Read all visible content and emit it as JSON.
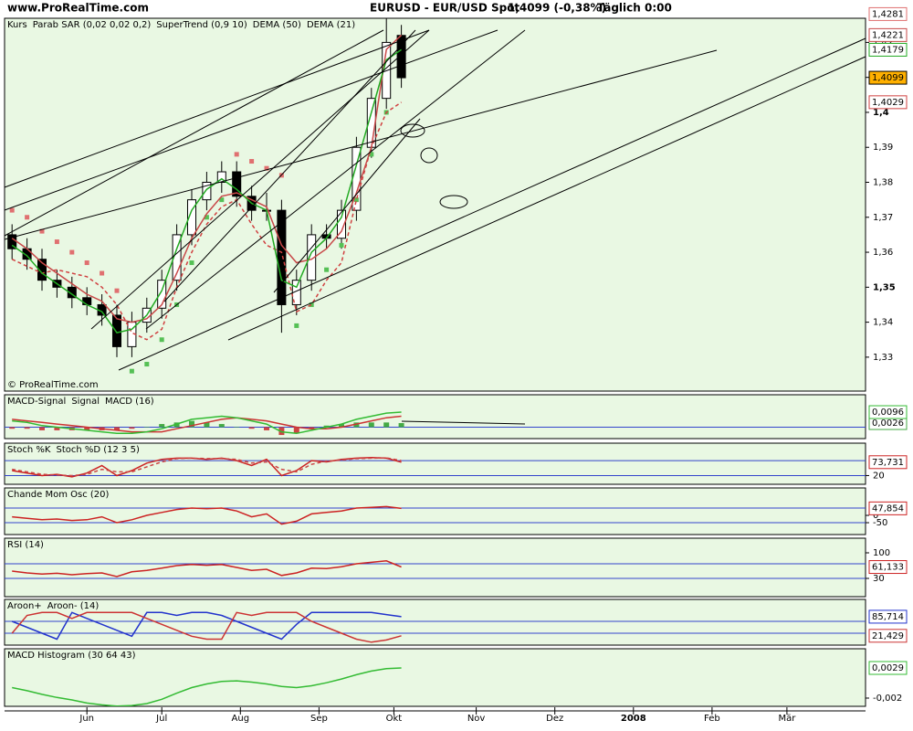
{
  "header": {
    "site": "www.ProRealTime.com",
    "instrument": "EURUSD - EUR/USD Spot",
    "quote": "1,4099 (-0,38%)",
    "period": "Täglich 0:00",
    "copyright": "© ProRealTime.com"
  },
  "chart_data": [
    {
      "type": "candlestick",
      "x": [
        2,
        6,
        10,
        14,
        18,
        22,
        26,
        30,
        34,
        38,
        42,
        46,
        50,
        54,
        58,
        62,
        66,
        70,
        74,
        78,
        82,
        86,
        90,
        94,
        98,
        102,
        106
      ],
      "xlim": [
        0,
        230
      ],
      "xticks": [
        {
          "value": 22,
          "label": "Jun"
        },
        {
          "value": 42,
          "label": "Jul"
        },
        {
          "value": 63,
          "label": "Aug"
        },
        {
          "value": 84,
          "label": "Sep"
        },
        {
          "value": 104,
          "label": "Okt"
        },
        {
          "value": 126,
          "label": "Nov"
        },
        {
          "value": 147,
          "label": "Dez"
        },
        {
          "value": 168,
          "label": "2008",
          "bold": true
        },
        {
          "value": 189,
          "label": "Feb"
        },
        {
          "value": 209,
          "label": "Mär"
        }
      ],
      "ylim": [
        1.3203,
        1.4269
      ],
      "yticks": [
        {
          "value": 1.33,
          "label": "1,33"
        },
        {
          "value": 1.34,
          "label": "1,34"
        },
        {
          "value": 1.35,
          "label": "1,35",
          "bold": true
        },
        {
          "value": 1.36,
          "label": "1,36"
        },
        {
          "value": 1.37,
          "label": "1,37"
        },
        {
          "value": 1.38,
          "label": "1,38"
        },
        {
          "value": 1.39,
          "label": "1,39"
        },
        {
          "value": 1.4,
          "label": "1,4",
          "bold": true
        },
        {
          "value": 1.41,
          "label": "1,41"
        },
        {
          "value": 1.42,
          "label": "1,42"
        }
      ],
      "series": [
        {
          "name": "Kurs",
          "type": "candlestick",
          "color": "#000000",
          "tag_fill": "#ffb000",
          "last_label": "1,4099",
          "open": [
            1.365,
            1.361,
            1.358,
            1.352,
            1.35,
            1.347,
            1.345,
            1.342,
            1.333,
            1.34,
            1.344,
            1.352,
            1.365,
            1.375,
            1.38,
            1.383,
            1.376,
            1.372,
            1.372,
            1.345,
            1.352,
            1.365,
            1.364,
            1.372,
            1.39,
            1.404,
            1.422
          ],
          "high": [
            1.368,
            1.364,
            1.361,
            1.355,
            1.353,
            1.35,
            1.348,
            1.345,
            1.343,
            1.347,
            1.355,
            1.368,
            1.378,
            1.383,
            1.386,
            1.386,
            1.379,
            1.377,
            1.375,
            1.355,
            1.368,
            1.368,
            1.375,
            1.393,
            1.407,
            1.428,
            1.425
          ],
          "low": [
            1.358,
            1.355,
            1.349,
            1.347,
            1.344,
            1.342,
            1.339,
            1.33,
            1.33,
            1.337,
            1.341,
            1.349,
            1.362,
            1.372,
            1.377,
            1.373,
            1.369,
            1.369,
            1.337,
            1.342,
            1.349,
            1.361,
            1.361,
            1.369,
            1.387,
            1.401,
            1.407
          ],
          "close": [
            1.361,
            1.358,
            1.352,
            1.35,
            1.347,
            1.345,
            1.342,
            1.333,
            1.34,
            1.344,
            1.352,
            1.365,
            1.375,
            1.38,
            1.383,
            1.376,
            1.372,
            1.372,
            1.345,
            1.352,
            1.365,
            1.364,
            1.372,
            1.39,
            1.404,
            1.42,
            1.4099
          ]
        },
        {
          "name": "Parab SAR (0,02 0,02 0,2)",
          "type": "scatter",
          "color": "#e07070",
          "color_below": "#55c055",
          "last_label": "1,4281",
          "values": [
            1.372,
            1.37,
            1.366,
            1.363,
            1.36,
            1.357,
            1.354,
            1.349,
            1.326,
            1.328,
            1.335,
            1.345,
            1.357,
            1.37,
            1.375,
            1.388,
            1.386,
            1.384,
            1.382,
            1.339,
            1.345,
            1.355,
            1.362,
            1.375,
            1.388,
            1.4,
            1.4281
          ]
        },
        {
          "name": "SuperTrend (0,9 10)",
          "type": "line",
          "dash": true,
          "color": "#d04040",
          "last_label": "1,4029",
          "values": [
            1.358,
            1.356,
            1.354,
            1.355,
            1.354,
            1.353,
            1.35,
            1.345,
            1.337,
            1.335,
            1.338,
            1.35,
            1.36,
            1.368,
            1.373,
            1.375,
            1.368,
            1.362,
            1.36,
            1.343,
            1.345,
            1.352,
            1.357,
            1.375,
            1.39,
            1.4,
            1.4029
          ]
        },
        {
          "name": "DEMA (50)",
          "type": "line",
          "color": "#c84848",
          "last_label": "1,4221",
          "values": [
            1.364,
            1.361,
            1.357,
            1.354,
            1.351,
            1.348,
            1.346,
            1.341,
            1.34,
            1.341,
            1.345,
            1.354,
            1.364,
            1.371,
            1.376,
            1.377,
            1.375,
            1.373,
            1.362,
            1.357,
            1.358,
            1.361,
            1.366,
            1.377,
            1.39,
            1.418,
            1.4221
          ]
        },
        {
          "name": "DEMA (21)",
          "type": "line",
          "color": "#22aa22",
          "last_label": "1,4179",
          "values": [
            1.362,
            1.359,
            1.354,
            1.351,
            1.348,
            1.345,
            1.343,
            1.337,
            1.338,
            1.342,
            1.349,
            1.361,
            1.372,
            1.378,
            1.381,
            1.378,
            1.374,
            1.372,
            1.352,
            1.35,
            1.36,
            1.364,
            1.37,
            1.385,
            1.4,
            1.415,
            1.4179
          ]
        }
      ]
    },
    {
      "type": "line",
      "ylim": [
        -0.0073,
        0.0207
      ],
      "levels": [
        0
      ],
      "series": [
        {
          "name": "MACD-Signal",
          "type": "bar",
          "color": "#44aa44",
          "color_negative": "#cc4444",
          "last_label": "0,0026",
          "values": [
            -0.001,
            -0.001,
            -0.002,
            -0.002,
            -0.002,
            -0.002,
            -0.002,
            -0.002,
            -0.001,
            0.0,
            0.002,
            0.003,
            0.004,
            0.003,
            0.002,
            0.0,
            -0.001,
            -0.002,
            -0.005,
            -0.004,
            -0.001,
            0.001,
            0.002,
            0.003,
            0.003,
            0.003,
            0.0026
          ]
        },
        {
          "name": "Signal",
          "type": "line",
          "color": "#cc3333",
          "values": [
            0.005,
            0.004,
            0.003,
            0.002,
            0.001,
            0.0,
            -0.001,
            -0.002,
            -0.003,
            -0.003,
            -0.003,
            -0.001,
            0.001,
            0.003,
            0.005,
            0.006,
            0.005,
            0.004,
            0.002,
            0.0,
            -0.001,
            -0.001,
            0.0,
            0.002,
            0.004,
            0.006,
            0.007
          ]
        },
        {
          "name": "MACD (16)",
          "type": "line",
          "color": "#33bb33",
          "last_label": "0,0096",
          "values": [
            0.004,
            0.003,
            0.001,
            0.0,
            -0.001,
            -0.002,
            -0.003,
            -0.004,
            -0.004,
            -0.003,
            -0.001,
            0.002,
            0.005,
            0.006,
            0.007,
            0.006,
            0.004,
            0.002,
            -0.003,
            -0.004,
            -0.002,
            0.0,
            0.002,
            0.005,
            0.007,
            0.009,
            0.0096
          ]
        }
      ]
    },
    {
      "type": "line",
      "ylim": [
        -15,
        150
      ],
      "levels": [
        80,
        20
      ],
      "yticks": [
        20
      ],
      "series": [
        {
          "name": "Stoch %K",
          "type": "line",
          "color": "#cc2222",
          "last_label": "73,731",
          "values": [
            40,
            30,
            20,
            25,
            15,
            30,
            60,
            20,
            40,
            70,
            85,
            90,
            90,
            85,
            90,
            80,
            60,
            85,
            20,
            40,
            80,
            75,
            85,
            90,
            92,
            90,
            73.731
          ]
        },
        {
          "name": "Stoch %D (12 3 5)",
          "type": "line",
          "dash": true,
          "color": "#cc4444",
          "values": [
            45,
            35,
            25,
            22,
            20,
            25,
            45,
            35,
            35,
            55,
            75,
            88,
            90,
            88,
            88,
            85,
            70,
            75,
            45,
            35,
            65,
            78,
            82,
            88,
            90,
            91,
            80
          ]
        }
      ]
    },
    {
      "type": "line",
      "ylim": [
        -131,
        187.5
      ],
      "levels": [
        50,
        -50
      ],
      "yticks": [
        0,
        -50
      ],
      "series": [
        {
          "name": "Chande Mom Osc (20)",
          "type": "line",
          "color": "#cc2222",
          "last_label": "47,854",
          "values": [
            -10,
            -20,
            -30,
            -25,
            -35,
            -30,
            -10,
            -50,
            -30,
            0,
            20,
            40,
            50,
            45,
            50,
            30,
            -10,
            10,
            -60,
            -40,
            10,
            20,
            30,
            50,
            55,
            60,
            47.854
          ]
        }
      ]
    },
    {
      "type": "line",
      "ylim": [
        -20,
        140
      ],
      "levels": [
        70,
        30
      ],
      "yticks": [
        100,
        30
      ],
      "series": [
        {
          "name": "RSI (14)",
          "type": "line",
          "color": "#cc2222",
          "last_label": "61,133",
          "values": [
            50,
            45,
            42,
            44,
            40,
            43,
            45,
            35,
            48,
            52,
            58,
            65,
            68,
            66,
            68,
            60,
            52,
            55,
            38,
            45,
            58,
            57,
            62,
            70,
            74,
            78,
            61.133
          ]
        }
      ]
    },
    {
      "type": "line",
      "ylim": [
        -10,
        144
      ],
      "levels": [
        70,
        30
      ],
      "series": [
        {
          "name": "Aroon+",
          "type": "line",
          "color": "#2233cc",
          "last_label": "85,714",
          "values": [
            70,
            50,
            30,
            10,
            100,
            80,
            60,
            40,
            20,
            100,
            100,
            90,
            100,
            100,
            90,
            70,
            50,
            30,
            10,
            60,
            100,
            100,
            100,
            100,
            100,
            92.857,
            85.714
          ]
        },
        {
          "name": "Aroon- (14)",
          "type": "line",
          "color": "#cc3333",
          "last_label": "21,429",
          "values": [
            30,
            90,
            100,
            100,
            80,
            100,
            100,
            100,
            100,
            80,
            60,
            40,
            20,
            10,
            10,
            100,
            90,
            100,
            100,
            100,
            70,
            50,
            30,
            10,
            0,
            7.143,
            21.429
          ]
        }
      ]
    },
    {
      "type": "line",
      "ylim": [
        -0.00334,
        0.00602
      ],
      "yticks": [
        {
          "value": -0.002,
          "label": "-0,002"
        }
      ],
      "series": [
        {
          "name": "MACD Histogram (30 64 43)",
          "type": "line",
          "color": "#33bb33",
          "last_label": "0,0029",
          "values": [
            -0.0003,
            -0.0008,
            -0.0014,
            -0.0019,
            -0.0023,
            -0.0028,
            -0.0031,
            -0.0033,
            -0.0032,
            -0.0029,
            -0.0022,
            -0.0012,
            -0.0003,
            0.0003,
            0.0007,
            0.0008,
            0.0006,
            0.0003,
            -0.0001,
            -0.0003,
            0.0,
            0.0005,
            0.0011,
            0.0018,
            0.0024,
            0.0028,
            0.0029
          ]
        }
      ]
    }
  ]
}
